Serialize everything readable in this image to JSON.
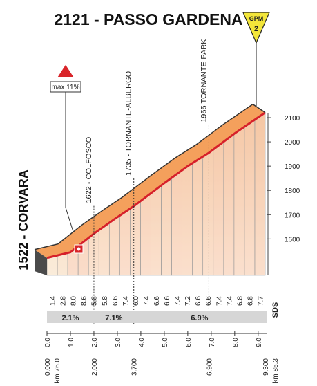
{
  "title": "2121 - PASSO GARDENA",
  "gpm": {
    "label": "GPM",
    "category": "2"
  },
  "max_gradient": "max 11%",
  "start_name": "1522 - CORVARA",
  "chart_data": {
    "type": "profile",
    "x": [
      0,
      1,
      2,
      3,
      3.7,
      5,
      6,
      6.9,
      8,
      9.3
    ],
    "values": [
      1522,
      1545,
      1622,
      1690,
      1735,
      1830,
      1900,
      1955,
      2035,
      2121
    ],
    "xlim": [
      0,
      9.3
    ],
    "ylim": [
      1450,
      2100
    ],
    "yticks": [
      1600,
      1700,
      1800,
      1900,
      2000,
      2100
    ],
    "xticks": [
      {
        "value": 0,
        "label": "0.0"
      },
      {
        "value": 1,
        "label": "1.0"
      },
      {
        "value": 2,
        "label": "2.0"
      },
      {
        "value": 3,
        "label": "3.0"
      },
      {
        "value": 4,
        "label": "4.0"
      },
      {
        "value": 5,
        "label": "5.0"
      },
      {
        "value": 6,
        "label": "6.0"
      },
      {
        "value": 7,
        "label": "7.0"
      },
      {
        "value": 8,
        "label": "8.0"
      },
      {
        "value": 9,
        "label": "9.0"
      }
    ],
    "gradients": [
      1.4,
      2.8,
      8,
      8.6,
      5.8,
      5.8,
      6.6,
      7.4,
      6,
      7.4,
      6.6,
      6.6,
      7.4,
      7.2,
      6.6,
      6.6,
      7.4,
      7.4,
      6.8,
      6.8,
      7.7
    ],
    "gradient_labels": [
      "1.4",
      "2.8",
      "8.0",
      "8.6",
      "5.8",
      "5.8",
      "6.6",
      "7.4",
      "6.0",
      "7.4",
      "6.6",
      "6.6",
      "7.4",
      "7.2",
      "6.6",
      "6.6",
      "7.4",
      "7.4",
      "6.8",
      "6.8",
      "7.7"
    ],
    "averages": [
      2.1,
      7.1,
      6.9
    ],
    "average_labels": [
      "2.1%",
      "7.1%",
      "6.9%"
    ],
    "distances": [
      {
        "value": 0,
        "label": "0.000"
      },
      {
        "value": 2,
        "label": "2.000"
      },
      {
        "value": 3.7,
        "label": "3.700"
      },
      {
        "value": 6.9,
        "label": "6.900"
      },
      {
        "value": 9.3,
        "label": "9.300"
      }
    ],
    "waypoints": [
      "1622 - COLFOSCO",
      "1735 - TORNANTE-ALBERGO",
      "1955 TORNANTE-PARK"
    ],
    "km_start": "km 76.0",
    "km_end": "km 85.3",
    "credit": "SDS"
  }
}
